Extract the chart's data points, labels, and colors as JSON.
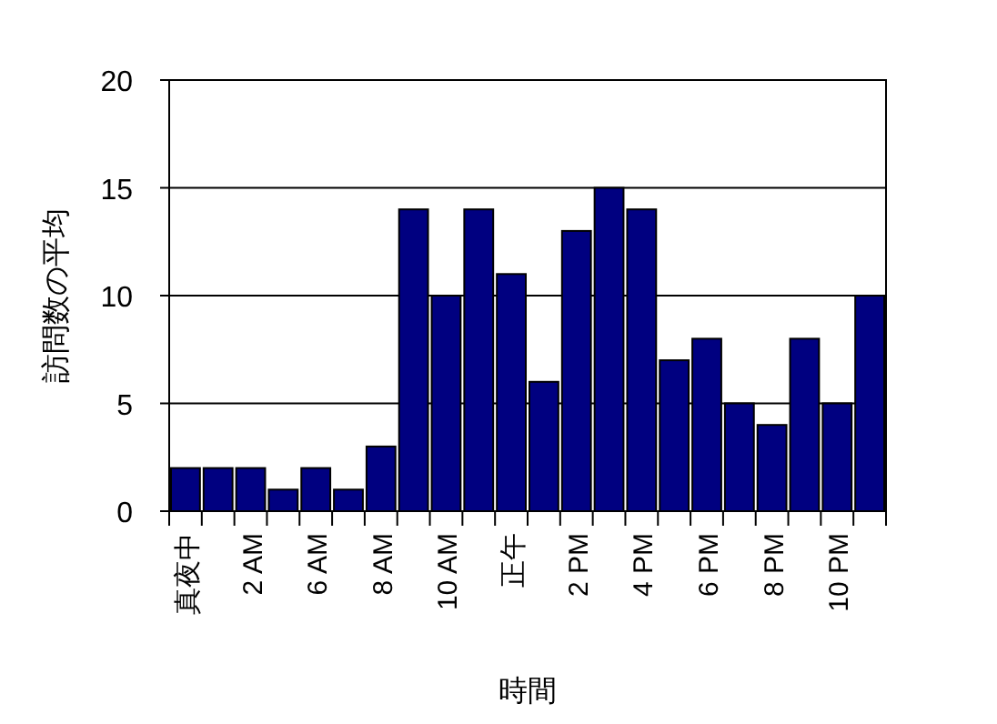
{
  "chart_data": {
    "type": "bar",
    "xlabel": "時間",
    "ylabel": "訪問数の平均",
    "categories": [
      "真夜中",
      null,
      "2 AM",
      null,
      "6 AM",
      null,
      "8 AM",
      null,
      "10 AM",
      null,
      "正午",
      null,
      "2 PM",
      null,
      "4 PM",
      null,
      "6 PM",
      null,
      "8 PM",
      null,
      "10 PM",
      null
    ],
    "values": [
      2,
      2,
      2,
      1,
      2,
      1,
      3,
      14,
      10,
      14,
      11,
      6,
      13,
      15,
      14,
      7,
      8,
      5,
      4,
      8,
      5,
      10
    ],
    "color": "#000080",
    "ylim": [
      0,
      20
    ],
    "yticks": [
      0,
      5,
      10,
      15,
      20
    ],
    "grid": "y"
  }
}
